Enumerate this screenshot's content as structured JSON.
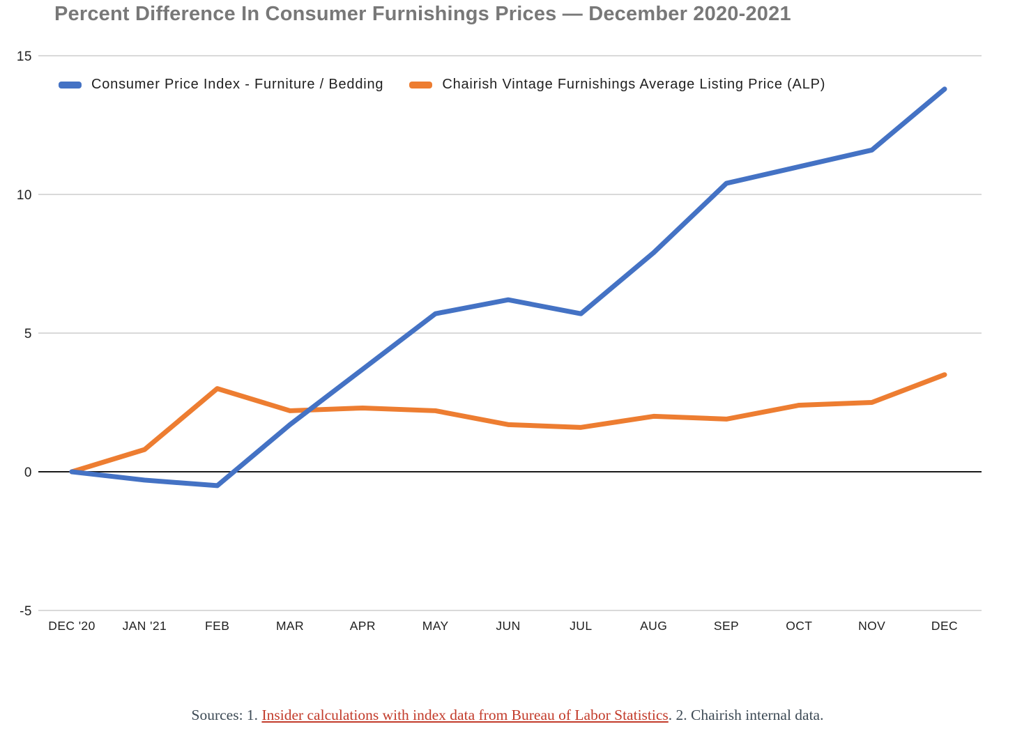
{
  "title": "Percent Difference In Consumer Furnishings Prices — December 2020-2021",
  "chart_data": {
    "type": "line",
    "categories": [
      "DEC '20",
      "JAN '21",
      "FEB",
      "MAR",
      "APR",
      "MAY",
      "JUN",
      "JUL",
      "AUG",
      "SEP",
      "OCT",
      "NOV",
      "DEC"
    ],
    "series": [
      {
        "name": "Consumer Price Index - Furniture / Bedding",
        "color": "#4472C4",
        "values": [
          0,
          -0.3,
          -0.5,
          1.7,
          3.7,
          5.7,
          6.2,
          5.7,
          7.9,
          10.4,
          11.0,
          11.6,
          13.8
        ]
      },
      {
        "name": "Chairish Vintage Furnishings Average Listing Price (ALP)",
        "color": "#ED7D31",
        "values": [
          0,
          0.8,
          3.0,
          2.2,
          2.3,
          2.2,
          1.7,
          1.6,
          2.0,
          1.9,
          2.4,
          2.5,
          3.5
        ]
      }
    ],
    "ylim": [
      -5,
      15
    ],
    "yticks": [
      15,
      10,
      5,
      0,
      -5
    ],
    "grid": "horizontal",
    "legend_position": "top",
    "gridline_color": "#d9d9d9",
    "axis_color": "#1a1a1a",
    "tick_label_color": "#1f1f1f"
  },
  "footer": {
    "prefix": "Sources: 1. ",
    "link_text": "Insider calculations with index data from Bureau of Labor Statistics",
    "suffix": ". 2. Chairish internal data."
  }
}
